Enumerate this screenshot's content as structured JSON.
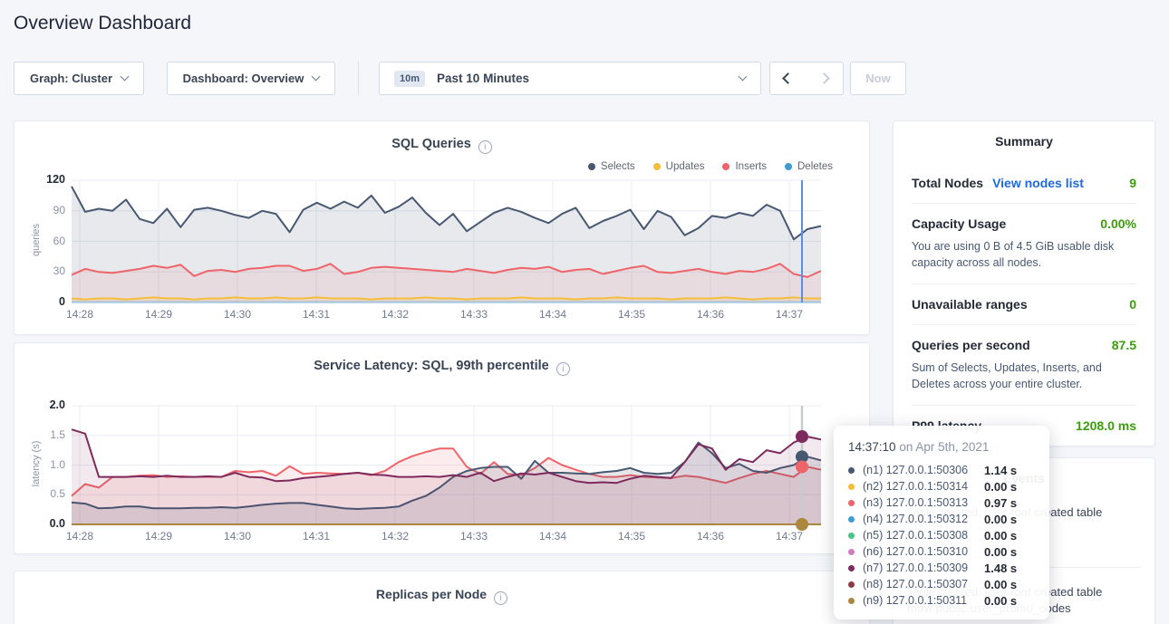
{
  "page_title": "Overview Dashboard",
  "controls": {
    "graph_selector": "Graph: Cluster",
    "dashboard_selector": "Dashboard: Overview",
    "time_window_badge": "10m",
    "time_window_label": "Past 10 Minutes",
    "now_button": "Now"
  },
  "summary": {
    "title": "Summary",
    "total_nodes_label": "Total Nodes",
    "view_nodes_link": "View nodes list",
    "total_nodes_value": "9",
    "capacity_label": "Capacity Usage",
    "capacity_value": "0.00%",
    "capacity_desc": "You are using 0 B of 4.5 GiB usable disk capacity across all nodes.",
    "unavailable_label": "Unavailable ranges",
    "unavailable_value": "0",
    "qps_label": "Queries per second",
    "qps_value": "87.5",
    "qps_desc": "Sum of Selects, Updates, Inserts, and Deletes across your entire cluster.",
    "p99_label": "P99 latency",
    "p99_value": "1208.0 ms"
  },
  "events": {
    "title": "Events",
    "items": [
      {
        "line1": "Table created: user root created table",
        "line2": ""
      },
      {
        "line1": "Table created: user root created table",
        "line2": "movr.public.user_promo_codes"
      }
    ]
  },
  "tooltip": {
    "time": "14:37:10",
    "date": " on Apr 5th, 2021",
    "rows": [
      {
        "color": "#475872",
        "label": "(n1) 127.0.0.1:50306",
        "value": "1.14 s"
      },
      {
        "color": "#f5bd3a",
        "label": "(n2) 127.0.0.1:50314",
        "value": "0.00 s"
      },
      {
        "color": "#ef6469",
        "label": "(n3) 127.0.0.1:50313",
        "value": "0.97 s"
      },
      {
        "color": "#3e9cd0",
        "label": "(n4) 127.0.0.1:50312",
        "value": "0.00 s"
      },
      {
        "color": "#47c687",
        "label": "(n5) 127.0.0.1:50308",
        "value": "0.00 s"
      },
      {
        "color": "#cf7ec2",
        "label": "(n6) 127.0.0.1:50310",
        "value": "0.00 s"
      },
      {
        "color": "#7d2a5d",
        "label": "(n7) 127.0.0.1:50309",
        "value": "1.48 s"
      },
      {
        "color": "#8e3a44",
        "label": "(n8) 127.0.0.1:50307",
        "value": "0.00 s"
      },
      {
        "color": "#a9873e",
        "label": "(n9) 127.0.0.1:50311",
        "value": "0.00 s"
      }
    ]
  },
  "chart_data": [
    {
      "id": "sql",
      "type": "area",
      "title": "SQL Queries",
      "ylabel": "queries",
      "ylim": [
        0,
        120
      ],
      "yticks": [
        "0",
        "30",
        "60",
        "90",
        "120"
      ],
      "x_ticks": [
        "14:28",
        "14:29",
        "14:30",
        "14:31",
        "14:32",
        "14:33",
        "14:34",
        "14:35",
        "14:36",
        "14:37"
      ],
      "legend": [
        "Selects",
        "Updates",
        "Inserts",
        "Deletes"
      ],
      "hover_time": "14:37:10",
      "series": [
        {
          "name": "Selects",
          "color": "#475872",
          "fill": "rgba(71,88,114,0.13)",
          "values": [
            114,
            89,
            92,
            90,
            101,
            82,
            78,
            92,
            74,
            91,
            93,
            90,
            86,
            83,
            90,
            87,
            69,
            91,
            98,
            92,
            99,
            93,
            105,
            88,
            94,
            103,
            88,
            76,
            87,
            70,
            79,
            88,
            93,
            89,
            83,
            78,
            87,
            93,
            73,
            80,
            85,
            91,
            72,
            90,
            84,
            66,
            73,
            85,
            83,
            88,
            85,
            96,
            90,
            62,
            72,
            75
          ]
        },
        {
          "name": "Inserts",
          "color": "#ef6469",
          "fill": "rgba(239,100,105,0.10)",
          "values": [
            27,
            33,
            30,
            29,
            31,
            33,
            36,
            34,
            37,
            26,
            31,
            32,
            30,
            33,
            34,
            36,
            36,
            31,
            33,
            38,
            28,
            30,
            34,
            35,
            34,
            33,
            32,
            31,
            30,
            33,
            31,
            29,
            32,
            34,
            33,
            35,
            30,
            32,
            33,
            28,
            31,
            34,
            36,
            30,
            29,
            31,
            33,
            30,
            28,
            31,
            30,
            33,
            38,
            28,
            25,
            31
          ]
        },
        {
          "name": "Updates",
          "color": "#f5bd3a",
          "fill": "rgba(245,189,58,0.12)",
          "values": [
            4,
            3,
            4,
            4,
            3,
            4,
            5,
            4,
            4,
            3,
            4,
            4,
            5,
            4,
            4,
            5,
            4,
            4,
            5,
            4,
            4,
            4,
            3,
            4,
            4,
            4,
            5,
            4,
            4,
            3,
            4,
            4,
            4,
            5,
            4,
            4,
            4,
            3,
            4,
            4,
            5,
            4,
            4,
            4,
            3,
            4,
            4,
            4,
            5,
            4,
            3,
            4,
            4,
            5,
            4,
            4
          ]
        },
        {
          "name": "Deletes",
          "color": "#3e9cd0",
          "fill": "rgba(62,156,208,0.10)",
          "flat": 0.5
        }
      ]
    },
    {
      "id": "latency",
      "type": "area",
      "title": "Service Latency: SQL, 99th percentile",
      "ylabel": "latency (s)",
      "ylim": [
        0,
        2
      ],
      "yticks": [
        "0.0",
        "0.5",
        "1.0",
        "1.5",
        "2.0"
      ],
      "x_ticks": [
        "14:28",
        "14:29",
        "14:30",
        "14:31",
        "14:32",
        "14:33",
        "14:34",
        "14:35",
        "14:36",
        "14:37"
      ],
      "hover_time": "14:37:10",
      "series": [
        {
          "name": "(n3) 127.0.0.1:50313",
          "color": "#ef6469",
          "fill": "rgba(239,100,105,0.12)",
          "values": [
            0.48,
            0.68,
            0.62,
            0.8,
            0.8,
            0.82,
            0.83,
            0.8,
            0.81,
            0.8,
            0.8,
            0.8,
            0.9,
            0.88,
            0.9,
            0.82,
            0.98,
            0.85,
            0.87,
            0.86,
            0.85,
            0.87,
            0.83,
            0.9,
            1.05,
            1.15,
            1.22,
            1.28,
            1.28,
            0.97,
            0.85,
            1.05,
            0.85,
            0.83,
            0.95,
            1.12,
            1.0,
            0.92,
            0.85,
            0.8,
            0.8,
            0.83,
            0.8,
            0.79,
            0.78,
            0.82,
            0.8,
            0.75,
            0.7,
            0.78,
            0.85,
            0.9,
            0.85,
            0.8,
            0.97,
            0.92
          ]
        },
        {
          "name": "(n1) 127.0.0.1:50306",
          "color": "#475872",
          "fill": "rgba(71,88,114,0.14)",
          "values": [
            0.37,
            0.35,
            0.27,
            0.28,
            0.3,
            0.3,
            0.27,
            0.27,
            0.27,
            0.28,
            0.28,
            0.29,
            0.28,
            0.3,
            0.33,
            0.35,
            0.36,
            0.36,
            0.33,
            0.3,
            0.27,
            0.26,
            0.27,
            0.28,
            0.3,
            0.4,
            0.48,
            0.62,
            0.8,
            0.9,
            0.95,
            0.97,
            0.97,
            0.77,
            1.07,
            0.87,
            0.87,
            0.86,
            0.85,
            0.88,
            0.9,
            0.95,
            0.87,
            0.85,
            0.87,
            1.05,
            1.38,
            1.2,
            0.95,
            1.02,
            0.9,
            0.87,
            0.95,
            1.0,
            1.14,
            1.08
          ]
        },
        {
          "name": "(n7) 127.0.0.1:50309",
          "color": "#7d2a5d",
          "fill": "rgba(125,42,93,0.10)",
          "values": [
            1.6,
            1.53,
            0.8,
            0.8,
            0.8,
            0.81,
            0.8,
            0.82,
            0.8,
            0.8,
            0.81,
            0.8,
            0.87,
            0.8,
            0.79,
            0.73,
            0.74,
            0.78,
            0.8,
            0.82,
            0.85,
            0.87,
            0.84,
            0.83,
            0.8,
            0.8,
            0.81,
            0.8,
            0.83,
            0.8,
            0.87,
            0.73,
            0.8,
            0.86,
            0.84,
            0.87,
            0.8,
            0.73,
            0.7,
            0.71,
            0.7,
            0.77,
            0.82,
            0.8,
            0.78,
            1.05,
            1.35,
            1.28,
            0.92,
            1.1,
            1.05,
            1.25,
            1.2,
            1.38,
            1.48,
            1.43
          ]
        },
        {
          "name": "(n2) 127.0.0.1:50314",
          "color": "#f5bd3a",
          "flat": 0
        },
        {
          "name": "(n4) 127.0.0.1:50312",
          "color": "#3e9cd0",
          "flat": 0
        },
        {
          "name": "(n5) 127.0.0.1:50308",
          "color": "#47c687",
          "flat": 0
        },
        {
          "name": "(n6) 127.0.0.1:50310",
          "color": "#cf7ec2",
          "flat": 0
        },
        {
          "name": "(n8) 127.0.0.1:50307",
          "color": "#8e3a44",
          "flat": 0
        },
        {
          "name": "(n9) 127.0.0.1:50311",
          "color": "#a9873e",
          "flat": 0
        }
      ],
      "hover_dots": [
        {
          "color": "#7d2a5d",
          "value": 1.48
        },
        {
          "color": "#475872",
          "value": 1.14
        },
        {
          "color": "#ef6469",
          "value": 0.97
        },
        {
          "color": "#a9873e",
          "value": 0.0
        }
      ]
    },
    {
      "id": "replicas",
      "type": "line",
      "title": "Replicas per Node"
    }
  ]
}
